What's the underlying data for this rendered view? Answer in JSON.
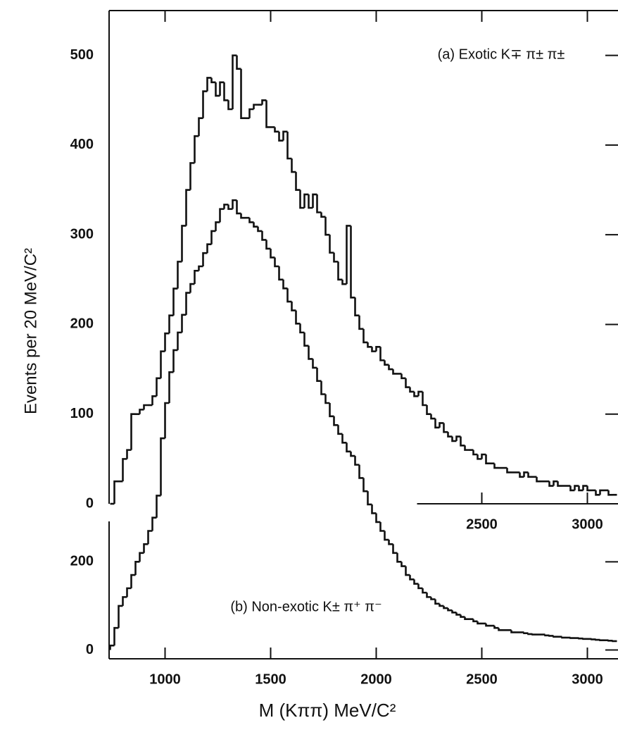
{
  "chart_data": [
    {
      "type": "histogram",
      "label": "(a) Exotic K∓ π± π±",
      "y_label": "Events per 20 MeV/C²",
      "bins": [
        740,
        760,
        780,
        800,
        820,
        840,
        860,
        880,
        900,
        920,
        940,
        960,
        980,
        1000,
        1020,
        1040,
        1060,
        1080,
        1100,
        1120,
        1140,
        1160,
        1180,
        1200,
        1220,
        1240,
        1260,
        1280,
        1300,
        1320,
        1340,
        1360,
        1380,
        1400,
        1420,
        1440,
        1460,
        1480,
        1500,
        1520,
        1540,
        1560,
        1580,
        1600,
        1620,
        1640,
        1660,
        1680,
        1700,
        1720,
        1740,
        1760,
        1780,
        1800,
        1820,
        1840,
        1860,
        1880,
        1900,
        1920,
        1940,
        1960,
        1980,
        2000,
        2020,
        2040,
        2060,
        2080,
        2100,
        2120,
        2140,
        2160,
        2180,
        2200,
        2220,
        2240,
        2260,
        2280,
        2300,
        2320,
        2340,
        2360,
        2380,
        2400,
        2420,
        2440,
        2460,
        2480,
        2500,
        2520,
        2540,
        2560,
        2580,
        2600,
        2620,
        2640,
        2660,
        2680,
        2700,
        2720,
        2740,
        2760,
        2780,
        2800,
        2820,
        2840,
        2860,
        2880,
        2900,
        2920,
        2940,
        2960,
        2980,
        3000,
        3020,
        3040,
        3060,
        3080,
        3100,
        3120,
        3140
      ],
      "values": [
        0,
        25,
        25,
        50,
        60,
        100,
        100,
        105,
        110,
        110,
        120,
        140,
        170,
        190,
        210,
        240,
        270,
        310,
        350,
        380,
        410,
        430,
        460,
        475,
        470,
        455,
        470,
        450,
        440,
        500,
        485,
        430,
        430,
        440,
        445,
        445,
        450,
        420,
        420,
        415,
        405,
        415,
        385,
        370,
        350,
        330,
        345,
        330,
        345,
        325,
        320,
        300,
        280,
        270,
        250,
        245,
        310,
        230,
        210,
        195,
        180,
        175,
        170,
        175,
        160,
        155,
        150,
        145,
        145,
        140,
        130,
        125,
        120,
        125,
        110,
        100,
        95,
        85,
        90,
        80,
        75,
        70,
        75,
        65,
        60,
        60,
        55,
        50,
        55,
        45,
        45,
        40,
        40,
        40,
        35,
        35,
        35,
        30,
        35,
        30,
        30,
        25,
        25,
        25,
        20,
        25,
        20,
        20,
        20,
        15,
        20,
        15,
        20,
        15,
        15,
        10,
        15,
        15,
        10,
        10
      ],
      "color": "#111111",
      "xlim": [
        735,
        3145
      ],
      "xticks": [
        2500,
        3000
      ],
      "ylim": [
        0,
        550
      ],
      "yticks": [
        0,
        100,
        200,
        300,
        400,
        500
      ]
    },
    {
      "type": "histogram",
      "label": "(b) Non-exotic K± π⁺ π⁻",
      "x_label": "M (Kππ) MeV/C²",
      "bins": [
        740,
        760,
        780,
        800,
        820,
        840,
        860,
        880,
        900,
        920,
        940,
        960,
        980,
        1000,
        1020,
        1040,
        1060,
        1080,
        1100,
        1120,
        1140,
        1160,
        1180,
        1200,
        1220,
        1240,
        1260,
        1280,
        1300,
        1320,
        1340,
        1360,
        1380,
        1400,
        1420,
        1440,
        1460,
        1480,
        1500,
        1520,
        1540,
        1560,
        1580,
        1600,
        1620,
        1640,
        1660,
        1680,
        1700,
        1720,
        1740,
        1760,
        1780,
        1800,
        1820,
        1840,
        1860,
        1880,
        1900,
        1920,
        1940,
        1960,
        1980,
        2000,
        2020,
        2040,
        2060,
        2080,
        2100,
        2120,
        2140,
        2160,
        2180,
        2200,
        2220,
        2240,
        2260,
        2280,
        2300,
        2320,
        2340,
        2360,
        2380,
        2400,
        2420,
        2440,
        2460,
        2480,
        2500,
        2520,
        2540,
        2560,
        2580,
        2600,
        2620,
        2640,
        2660,
        2680,
        2700,
        2720,
        2740,
        2760,
        2780,
        2800,
        2820,
        2840,
        2860,
        2880,
        2900,
        2920,
        2940,
        2960,
        2980,
        3000,
        3020,
        3040,
        3060,
        3080,
        3100,
        3120,
        3140
      ],
      "values": [
        10,
        50,
        100,
        120,
        140,
        170,
        200,
        220,
        240,
        270,
        300,
        350,
        480,
        560,
        630,
        680,
        720,
        760,
        810,
        830,
        860,
        870,
        900,
        920,
        950,
        970,
        1000,
        1010,
        1000,
        1020,
        990,
        980,
        980,
        970,
        960,
        950,
        930,
        910,
        890,
        870,
        840,
        820,
        790,
        770,
        740,
        720,
        690,
        660,
        640,
        610,
        580,
        560,
        530,
        510,
        490,
        470,
        450,
        440,
        420,
        390,
        360,
        330,
        310,
        290,
        270,
        250,
        240,
        220,
        200,
        190,
        170,
        160,
        150,
        140,
        130,
        120,
        115,
        105,
        100,
        95,
        90,
        85,
        80,
        75,
        70,
        70,
        65,
        60,
        60,
        55,
        55,
        50,
        45,
        45,
        45,
        40,
        40,
        40,
        38,
        36,
        35,
        35,
        35,
        33,
        32,
        30,
        30,
        28,
        28,
        27,
        27,
        26,
        25,
        25,
        24,
        23,
        22,
        22,
        21,
        20
      ],
      "color": "#111111",
      "xlim": [
        735,
        3145
      ],
      "xticks": [
        1000,
        1500,
        2000,
        2500,
        3000
      ],
      "ylim": [
        -20,
        1450
      ],
      "yticks": [
        0,
        200
      ]
    }
  ]
}
